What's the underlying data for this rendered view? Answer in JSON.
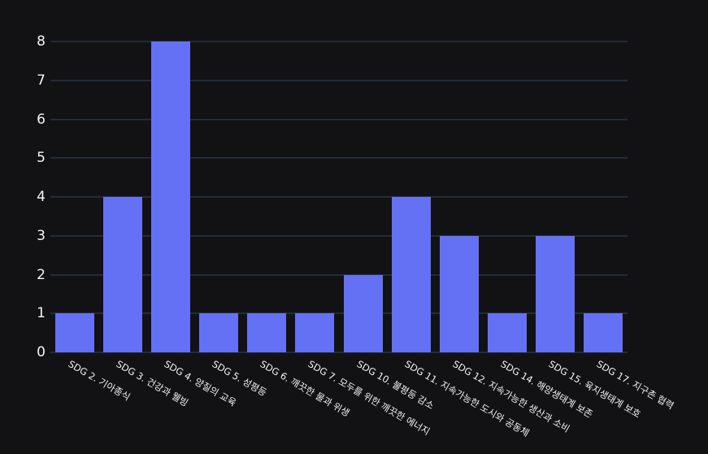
{
  "chart_data": {
    "type": "bar",
    "categories": [
      "SDG 2. 기아종식",
      "SDG 3. 건강과 웰빙",
      "SDG 4. 양질의 교육",
      "SDG 5. 성평등",
      "SDG 6. 깨끗한 물과 위생",
      "SDG 7. 모두를 위한 깨끗한 에너지",
      "SDG 10. 불평등 감소",
      "SDG 11. 지속가능한 도시와 공동체",
      "SDG 12. 지속가능한 생산과 소비",
      "SDG 14. 해양생태계 보존",
      "SDG 15. 육지생태계 보호",
      "SDG 17. 지구촌 협력"
    ],
    "values": [
      1,
      4,
      8,
      1,
      1,
      1,
      2,
      4,
      3,
      1,
      3,
      1
    ],
    "title": "",
    "xlabel": "",
    "ylabel": "",
    "ylim": [
      0,
      8
    ],
    "yticks": [
      0,
      1,
      2,
      3,
      4,
      5,
      6,
      7,
      8
    ],
    "grid": true,
    "legend": false,
    "x_label_rotation_deg": 30,
    "colors": {
      "bar": "#6471f4",
      "background": "#121214",
      "gridline": "#242b39",
      "tick_label": "#f5f5f7"
    }
  }
}
